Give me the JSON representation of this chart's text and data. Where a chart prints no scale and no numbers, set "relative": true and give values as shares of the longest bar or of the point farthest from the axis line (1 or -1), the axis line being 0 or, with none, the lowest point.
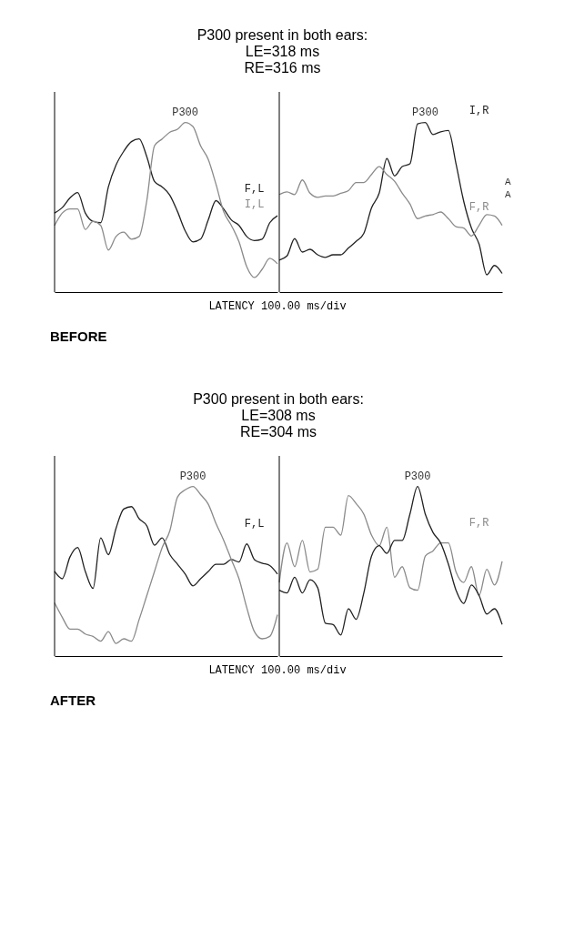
{
  "chart_data": [
    {
      "type": "line",
      "relative": true,
      "title": "P300 present in both ears:",
      "subtitle": "LE=318 ms\nRE=316 ms",
      "xlabel": "LATENCY 100.00 ms/div",
      "annotations": [
        "P300",
        "BEFORE"
      ],
      "categories": [
        null,
        null,
        null,
        null,
        null,
        null,
        null,
        null,
        null,
        null,
        null,
        null,
        null,
        null,
        null,
        null,
        null,
        null,
        null,
        null,
        null,
        null,
        null,
        null,
        null,
        null,
        null,
        null,
        null,
        null
      ],
      "series": [
        {
          "name": "F,L",
          "color": "#222222",
          "values": [
            0.466,
            0.498,
            0.555,
            0.587,
            0.466,
            0.417,
            0.409,
            0.62,
            0.749,
            0.83,
            0.887,
            0.903,
            0.798,
            0.652,
            0.62,
            0.571,
            0.474,
            0.361,
            0.296,
            0.312,
            0.426,
            0.539,
            0.49,
            0.426,
            0.393,
            0.328,
            0.304,
            0.312,
            0.409,
            0.45
          ]
        },
        {
          "name": "I,L",
          "color": "#8a8a8a",
          "values": [
            0.393,
            0.466,
            0.49,
            0.49,
            0.369,
            0.417,
            0.393,
            0.248,
            0.328,
            0.353,
            0.312,
            0.328,
            0.539,
            0.862,
            0.903,
            0.943,
            0.96,
            1,
            0.976,
            0.862,
            0.782,
            0.636,
            0.474,
            0.393,
            0.296,
            0.15,
            0.086,
            0.134,
            0.199,
            0.167
          ]
        }
      ]
    },
    {
      "type": "line",
      "relative": true,
      "annotations": [
        "P300",
        "A",
        "A"
      ],
      "categories": [
        null,
        null,
        null,
        null,
        null,
        null,
        null,
        null,
        null,
        null,
        null,
        null,
        null,
        null,
        null,
        null,
        null,
        null,
        null,
        null,
        null,
        null,
        null,
        null,
        null,
        null,
        null,
        null,
        null,
        null
      ],
      "series": [
        {
          "name": "I,R",
          "color": "#222222",
          "values": [
            0.189,
            0.213,
            0.315,
            0.236,
            0.252,
            0.22,
            0.205,
            0.22,
            0.22,
            0.26,
            0.299,
            0.346,
            0.496,
            0.583,
            0.787,
            0.685,
            0.74,
            0.756,
            0.992,
            1,
            0.929,
            0.945,
            0.953,
            0.756,
            0.535,
            0.378,
            0.283,
            0.102,
            0.157,
            0.11
          ]
        },
        {
          "name": "F,R",
          "color": "#8a8a8a",
          "values": [
            0.575,
            0.591,
            0.575,
            0.661,
            0.583,
            0.559,
            0.567,
            0.567,
            0.583,
            0.598,
            0.646,
            0.646,
            0.693,
            0.74,
            0.693,
            0.654,
            0.583,
            0.52,
            0.433,
            0.449,
            0.457,
            0.472,
            0.433,
            0.386,
            0.378,
            0.331,
            0.394,
            0.457,
            0.449,
            0.394
          ]
        }
      ]
    },
    {
      "type": "line",
      "relative": true,
      "title": "P300 present in both ears:",
      "subtitle": "LE=308 ms\nRE=304 ms",
      "xlabel": "LATENCY 100.00 ms/div",
      "annotations": [
        "P300",
        "AFTER"
      ],
      "categories": [
        null,
        null,
        null,
        null,
        null,
        null,
        null,
        null,
        null,
        null,
        null,
        null,
        null,
        null,
        null,
        null,
        null,
        null,
        null,
        null,
        null,
        null,
        null,
        null,
        null,
        null,
        null,
        null,
        null,
        null
      ],
      "series": [
        {
          "name": "F,L",
          "color": "#222222",
          "values": [
            0.499,
            0.456,
            0.584,
            0.64,
            0.499,
            0.399,
            0.697,
            0.598,
            0.754,
            0.867,
            0.881,
            0.81,
            0.768,
            0.654,
            0.697,
            0.598,
            0.541,
            0.484,
            0.414,
            0.456,
            0.499,
            0.541,
            0.541,
            0.569,
            0.555,
            0.661,
            0.569,
            0.548,
            0.534,
            0.484
          ]
        },
        {
          "color": "#8a8a8a",
          "values": [
            0.314,
            0.229,
            0.159,
            0.159,
            0.13,
            0.116,
            0.088,
            0.144,
            0.074,
            0.102,
            0.088,
            0.215,
            0.357,
            0.499,
            0.64,
            0.739,
            0.938,
            0.98,
            1,
            0.952,
            0.895,
            0.782,
            0.683,
            0.569,
            0.456,
            0.286,
            0.144,
            0.102,
            0.116,
            0.244
          ]
        }
      ]
    },
    {
      "type": "line",
      "relative": true,
      "annotations": [
        "P300"
      ],
      "categories": [
        null,
        null,
        null,
        null,
        null,
        null,
        null,
        null,
        null,
        null,
        null,
        null,
        null,
        null,
        null,
        null,
        null,
        null,
        null,
        null,
        null,
        null,
        null,
        null,
        null,
        null,
        null,
        null,
        null,
        null
      ],
      "series": [
        {
          "name": "F,R",
          "color": "#8a8a8a",
          "values": [
            0.434,
            0.667,
            0.527,
            0.682,
            0.496,
            0.512,
            0.76,
            0.76,
            0.713,
            0.946,
            0.899,
            0.837,
            0.713,
            0.651,
            0.76,
            0.465,
            0.527,
            0.403,
            0.388,
            0.589,
            0.62,
            0.667,
            0.667,
            0.496,
            0.434,
            0.527,
            0.357,
            0.512,
            0.419,
            0.558
          ]
        },
        {
          "color": "#222222",
          "values": [
            0.388,
            0.372,
            0.465,
            0.372,
            0.45,
            0.403,
            0.194,
            0.186,
            0.124,
            0.279,
            0.217,
            0.372,
            0.589,
            0.651,
            0.605,
            0.682,
            0.682,
            0.837,
            1,
            0.837,
            0.729,
            0.667,
            0.543,
            0.388,
            0.31,
            0.419,
            0.357,
            0.248,
            0.279,
            0.186
          ]
        }
      ]
    }
  ]
}
